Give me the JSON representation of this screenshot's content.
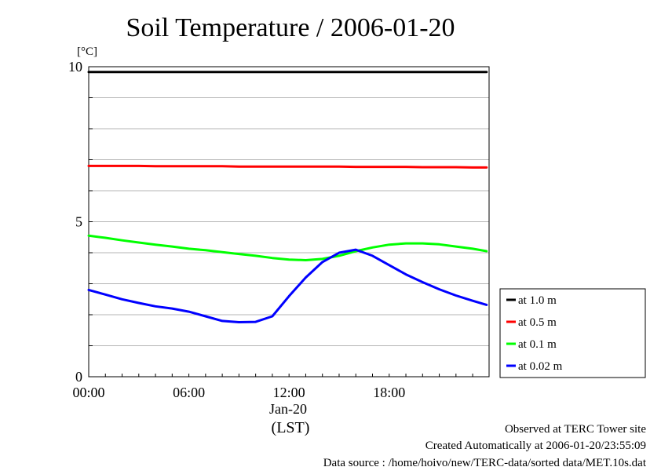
{
  "chart_data": {
    "type": "line",
    "title": "Soil Temperature / 2006-01-20",
    "ylabel": "[°C]",
    "xlabel": "(LST)",
    "x_date_label": "Jan-20",
    "xlim": [
      "00:00",
      "23:59"
    ],
    "ylim": [
      0,
      10
    ],
    "x_ticks": [
      "00:00",
      "06:00",
      "12:00",
      "18:00"
    ],
    "y_ticks": [
      "0",
      "5",
      "10"
    ],
    "grid": true,
    "legend_position": "right",
    "x": [
      "00:00",
      "01:00",
      "02:00",
      "03:00",
      "04:00",
      "05:00",
      "06:00",
      "07:00",
      "08:00",
      "09:00",
      "10:00",
      "11:00",
      "12:00",
      "13:00",
      "14:00",
      "15:00",
      "16:00",
      "17:00",
      "18:00",
      "19:00",
      "20:00",
      "21:00",
      "22:00",
      "23:00",
      "23:50"
    ],
    "series": [
      {
        "name": "at 1.0 m",
        "color": "#000000",
        "values": [
          9.83,
          9.83,
          9.83,
          9.83,
          9.83,
          9.83,
          9.83,
          9.83,
          9.83,
          9.83,
          9.83,
          9.83,
          9.83,
          9.83,
          9.83,
          9.83,
          9.83,
          9.83,
          9.83,
          9.83,
          9.83,
          9.83,
          9.83,
          9.83,
          9.83
        ]
      },
      {
        "name": "at 0.5 m",
        "color": "#ff0000",
        "values": [
          6.8,
          6.8,
          6.8,
          6.8,
          6.79,
          6.79,
          6.79,
          6.79,
          6.79,
          6.78,
          6.78,
          6.78,
          6.78,
          6.78,
          6.78,
          6.78,
          6.77,
          6.77,
          6.77,
          6.77,
          6.76,
          6.76,
          6.76,
          6.75,
          6.75
        ]
      },
      {
        "name": "at 0.1 m",
        "color": "#00ff00",
        "values": [
          4.55,
          4.48,
          4.4,
          4.33,
          4.26,
          4.2,
          4.13,
          4.08,
          4.02,
          3.96,
          3.9,
          3.83,
          3.78,
          3.76,
          3.8,
          3.9,
          4.05,
          4.17,
          4.26,
          4.3,
          4.3,
          4.27,
          4.2,
          4.13,
          4.05
        ]
      },
      {
        "name": "at 0.02 m",
        "color": "#0000ff",
        "values": [
          2.8,
          2.65,
          2.5,
          2.38,
          2.27,
          2.2,
          2.1,
          1.95,
          1.8,
          1.76,
          1.77,
          1.95,
          2.6,
          3.2,
          3.7,
          4.0,
          4.1,
          3.9,
          3.6,
          3.3,
          3.05,
          2.82,
          2.62,
          2.45,
          2.32
        ]
      }
    ]
  },
  "footer": {
    "line1": "Observed at TERC Tower site",
    "line2": "Created Automatically at 2006-01-20/23:55:09",
    "line3": "Data source : /home/hoivo/new/TERC-data/sorted  data/MET.10s.dat"
  }
}
